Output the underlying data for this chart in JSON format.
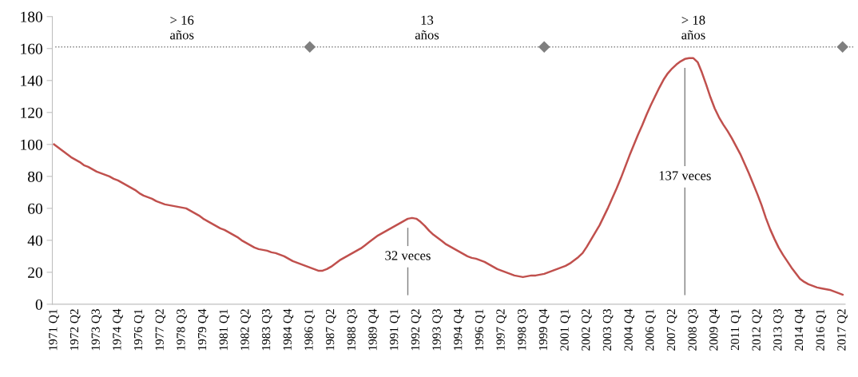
{
  "chart_data": {
    "type": "line",
    "categories": [
      "1971 Q1",
      null,
      null,
      null,
      null,
      "1972 Q2",
      null,
      null,
      null,
      null,
      "1973 Q3",
      null,
      null,
      null,
      null,
      "1974 Q4",
      null,
      null,
      null,
      null,
      "1976 Q1",
      null,
      null,
      null,
      null,
      "1977 Q2",
      null,
      null,
      null,
      null,
      "1978 Q3",
      null,
      null,
      null,
      null,
      "1979 Q4",
      null,
      null,
      null,
      null,
      "1981 Q1",
      null,
      null,
      null,
      null,
      "1982 Q2",
      null,
      null,
      null,
      null,
      "1983 Q3",
      null,
      null,
      null,
      null,
      "1984 Q4",
      null,
      null,
      null,
      null,
      "1986 Q1",
      null,
      null,
      null,
      null,
      "1987 Q2",
      null,
      null,
      null,
      null,
      "1988 Q3",
      null,
      null,
      null,
      null,
      "1989 Q4",
      null,
      null,
      null,
      null,
      "1991 Q1",
      null,
      null,
      null,
      null,
      "1992 Q2",
      null,
      null,
      null,
      null,
      "1993 Q3",
      null,
      null,
      null,
      null,
      "1994 Q4",
      null,
      null,
      null,
      null,
      "1996 Q1",
      null,
      null,
      null,
      null,
      "1997 Q2",
      null,
      null,
      null,
      null,
      "1998 Q3",
      null,
      null,
      null,
      null,
      "1999 Q4",
      null,
      null,
      null,
      null,
      "2001 Q1",
      null,
      null,
      null,
      null,
      "2002 Q2",
      null,
      null,
      null,
      null,
      "2003 Q3",
      null,
      null,
      null,
      null,
      "2004 Q4",
      null,
      null,
      null,
      null,
      "2006 Q1",
      null,
      null,
      null,
      null,
      "2007 Q2",
      null,
      null,
      null,
      null,
      "2008 Q3",
      null,
      null,
      null,
      null,
      "2009 Q4",
      null,
      null,
      null,
      null,
      "2011 Q1",
      null,
      null,
      null,
      null,
      "2012 Q2",
      null,
      null,
      null,
      null,
      "2013 Q3",
      null,
      null,
      null,
      null,
      "2014 Q4",
      null,
      null,
      null,
      null,
      "2016 Q1",
      null,
      null,
      null,
      null,
      "2017 Q2"
    ],
    "series": [
      {
        "color": "#c0504d",
        "values": [
          100,
          98,
          96,
          94,
          92,
          90.5,
          89,
          87,
          86,
          84.5,
          83,
          82,
          81,
          80,
          78.5,
          77.5,
          76,
          74.5,
          73,
          71.5,
          69.5,
          68,
          67,
          66,
          64.5,
          63.5,
          62.5,
          62,
          61.5,
          61,
          60.5,
          60,
          58.5,
          57,
          55.5,
          53.5,
          52,
          50.5,
          49,
          47.5,
          46.5,
          45,
          43.5,
          42,
          40,
          38.5,
          37,
          35.5,
          34.5,
          34,
          33.5,
          32.5,
          32,
          31,
          30,
          28.5,
          27,
          26,
          25,
          24,
          23,
          22,
          21,
          21,
          22,
          23.5,
          25.5,
          27.5,
          29,
          30.5,
          32,
          33.5,
          35,
          37,
          39,
          41,
          43,
          44.5,
          46,
          47.5,
          49,
          50.5,
          52,
          53.5,
          54,
          53.5,
          51.5,
          49,
          46,
          43.5,
          41.5,
          39.5,
          37.5,
          36,
          34.5,
          33,
          31.5,
          30,
          29,
          28.5,
          27.5,
          26.5,
          25,
          23.5,
          22,
          21,
          20,
          19,
          18,
          17.5,
          17,
          17.5,
          18,
          18,
          18.5,
          19,
          20,
          21,
          22,
          23,
          24,
          25.5,
          27.5,
          29.5,
          32,
          36,
          40.5,
          45,
          49.5,
          55,
          60.5,
          66.5,
          72.5,
          79,
          86,
          93,
          99.5,
          106,
          112,
          118.5,
          124.5,
          130,
          135.5,
          140.5,
          144.5,
          147.5,
          150,
          152,
          153.5,
          154,
          154,
          151.5,
          145,
          137.5,
          129.5,
          122.5,
          117,
          112.5,
          108.5,
          104,
          99,
          94,
          88,
          82,
          75.5,
          69,
          62,
          54,
          47,
          41,
          35.5,
          31,
          27,
          23,
          19.5,
          16,
          14,
          12.5,
          11.5,
          10.5,
          10,
          9.5,
          9,
          8,
          7,
          6
        ]
      },
      {
        "type": "scatter",
        "color": "#7f7f7f",
        "marker": "diamond",
        "x": [
          "1986 Q1",
          "1999 Q4",
          "2017 Q2"
        ],
        "values": [
          161,
          161,
          161
        ]
      }
    ],
    "ref_lines": [
      {
        "axis": "y",
        "value": 161,
        "color": "#7f7f7f",
        "line_style": "dotted"
      }
    ],
    "annotations": [
      "> 16\naños",
      "13\naños",
      "> 18\naños",
      "32 veces",
      "137 veces"
    ],
    "ylim": [
      0,
      180
    ],
    "yticks": [
      0,
      20,
      40,
      60,
      80,
      100,
      120,
      140,
      160,
      180
    ],
    "grid": false,
    "legend": false,
    "line_style": "solid",
    "marker": "none"
  }
}
